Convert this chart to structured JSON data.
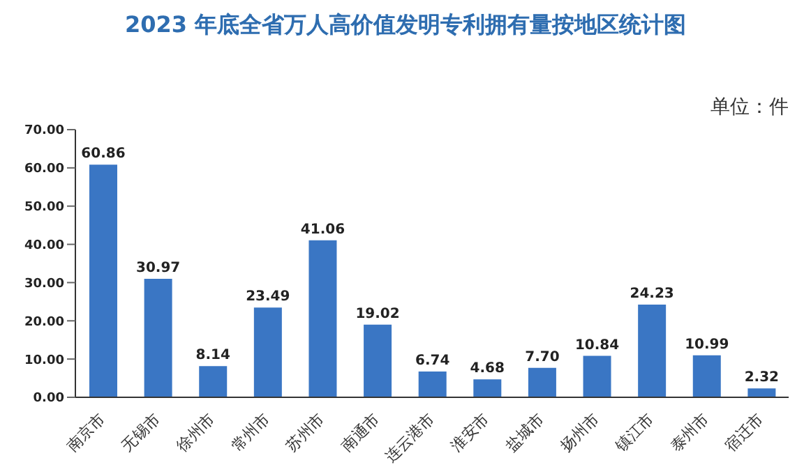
{
  "chart_data": {
    "type": "bar",
    "title": "2023 年底全省万人高价值发明专利拥有量按地区统计图",
    "annotations": [
      "单位：件"
    ],
    "categories": [
      "南京市",
      "无锡市",
      "徐州市",
      "常州市",
      "苏州市",
      "南通市",
      "连云港市",
      "淮安市",
      "盐城市",
      "扬州市",
      "镇江市",
      "泰州市",
      "宿迁市"
    ],
    "values": [
      60.86,
      30.97,
      8.14,
      23.49,
      41.06,
      19.02,
      6.74,
      4.68,
      7.7,
      10.84,
      24.23,
      10.99,
      2.32
    ],
    "value_labels": [
      "60.86",
      "30.97",
      "8.14",
      "23.49",
      "41.06",
      "19.02",
      "6.74",
      "4.68",
      "7.70",
      "10.84",
      "24.23",
      "10.99",
      "2.32"
    ],
    "color": "#3a76c4",
    "ylim": [
      0,
      70
    ],
    "yticks": [
      {
        "value": 0,
        "label": "0.00"
      },
      {
        "value": 10,
        "label": "10.00"
      },
      {
        "value": 20,
        "label": "20.00"
      },
      {
        "value": 30,
        "label": "30.00"
      },
      {
        "value": 40,
        "label": "40.00"
      },
      {
        "value": 50,
        "label": "50.00"
      },
      {
        "value": 60,
        "label": "60.00"
      },
      {
        "value": 70,
        "label": "70.00"
      }
    ],
    "grid": false,
    "legend": false
  }
}
